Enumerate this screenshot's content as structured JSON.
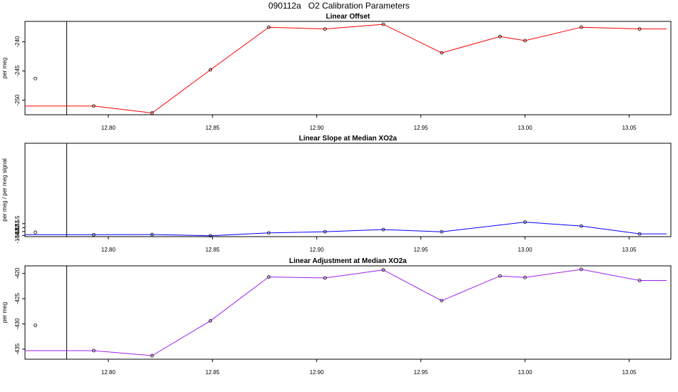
{
  "page": {
    "title": "090112a   O2 Calibration Parameters"
  },
  "chart_data": [
    {
      "type": "line",
      "title": "Linear Offset",
      "ylabel": "per meg",
      "color": "#ff0000",
      "xlim": [
        12.76,
        13.07
      ],
      "ylim": [
        -252.5,
        -236.5
      ],
      "xticks": [
        12.8,
        12.85,
        12.9,
        12.95,
        13.0,
        13.05
      ],
      "xtick_labels": [
        "12.80",
        "12.85",
        "12.90",
        "12.95",
        "13.00",
        "13.05"
      ],
      "yticks": [
        -250,
        -245,
        -240
      ],
      "ytick_labels": [
        "-250",
        "-245",
        "-240"
      ],
      "vline_x": 12.78,
      "outlier": {
        "x": 12.765,
        "y": -246.3
      },
      "series": [
        {
          "x": [
            12.76,
            12.793,
            12.821,
            12.849,
            12.877,
            12.904,
            12.932,
            12.96,
            12.988,
            13.0,
            13.027,
            13.055,
            13.068
          ],
          "y": [
            -251.0,
            -251.0,
            -252.2,
            -244.8,
            -237.5,
            -237.8,
            -237.0,
            -241.9,
            -239.1,
            -239.8,
            -237.5,
            -237.8,
            -237.8
          ],
          "markers": [
            false,
            true,
            true,
            true,
            true,
            true,
            true,
            true,
            true,
            true,
            true,
            true,
            false
          ]
        }
      ]
    },
    {
      "type": "line",
      "title": "Linear Slope at Median XO2a",
      "ylabel": "per meg / per meg signal",
      "color": "#0000ff",
      "xlim": [
        12.76,
        13.07
      ],
      "ylim": [
        -184.8,
        -161.0
      ],
      "xticks": [
        12.8,
        12.85,
        12.9,
        12.95,
        13.0,
        13.05
      ],
      "xtick_labels": [
        "12.80",
        "12.85",
        "12.90",
        "12.95",
        "13.00",
        "13.05"
      ],
      "yticks": [
        -184.5,
        -183.5,
        -182.5,
        -181.5
      ],
      "ytick_labels": [
        "-184.5",
        "-183.5",
        "-182.5",
        "-181.5"
      ],
      "vline_x": 12.78,
      "outlier": {
        "x": 12.765,
        "y": -183.7
      },
      "series": [
        {
          "x": [
            12.76,
            12.793,
            12.821,
            12.849,
            12.877,
            12.904,
            12.932,
            12.96,
            13.0,
            13.027,
            13.055,
            13.068
          ],
          "y": [
            -184.3,
            -184.3,
            -184.27,
            -184.57,
            -183.85,
            -183.55,
            -183.0,
            -183.57,
            -181.1,
            -182.1,
            -184.1,
            -184.1
          ],
          "markers": [
            false,
            true,
            true,
            true,
            true,
            true,
            true,
            true,
            true,
            true,
            true,
            false
          ]
        }
      ]
    },
    {
      "type": "line",
      "title": "Linear Adjustment at Median XO2a",
      "ylabel": "per meg",
      "color": "#a020f0",
      "xlim": [
        12.76,
        13.07
      ],
      "ylim": [
        -437.0,
        -418.5
      ],
      "xticks": [
        12.8,
        12.85,
        12.9,
        12.95,
        13.0,
        13.05
      ],
      "xtick_labels": [
        "12.80",
        "12.85",
        "12.90",
        "12.95",
        "13.00",
        "13.05"
      ],
      "yticks": [
        -435,
        -430,
        -425,
        -420
      ],
      "ytick_labels": [
        "-435",
        "-430",
        "-425",
        "-420"
      ],
      "vline_x": 12.78,
      "outlier": {
        "x": 12.765,
        "y": -430.3
      },
      "series": [
        {
          "x": [
            12.76,
            12.793,
            12.821,
            12.849,
            12.877,
            12.904,
            12.932,
            12.96,
            12.988,
            13.0,
            13.027,
            13.055,
            13.068
          ],
          "y": [
            -435.3,
            -435.3,
            -436.3,
            -429.4,
            -420.7,
            -420.9,
            -419.3,
            -425.4,
            -420.5,
            -420.8,
            -419.2,
            -421.4,
            -421.4
          ],
          "markers": [
            false,
            true,
            true,
            true,
            true,
            true,
            true,
            true,
            true,
            true,
            true,
            true,
            false
          ]
        }
      ]
    }
  ]
}
